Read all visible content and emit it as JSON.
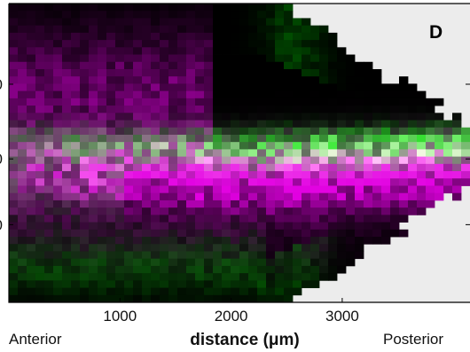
{
  "chart_data": {
    "type": "heatmap",
    "panel_label": "D",
    "xlabel": "distance (μm)",
    "xlabel_left": "Anterior",
    "xlabel_right": "Posterior",
    "x_ticks": [
      1000,
      2000,
      3000
    ],
    "xlim": [
      0,
      4150
    ],
    "y_tick_labels_partial": [
      "0",
      "0",
      "0"
    ],
    "grid": false,
    "channels": [
      {
        "color": "#e040e0"
      },
      {
        "color": "#30e030"
      }
    ],
    "background": "#ececec",
    "grid_cols": 52,
    "grid_rows": 41,
    "note_on_values": "per-cell two-channel intensity image; tissue outline widens from anterior (narrow, left) and narrows to posterior (right), magenta band at mid-height with green band slightly above it"
  }
}
